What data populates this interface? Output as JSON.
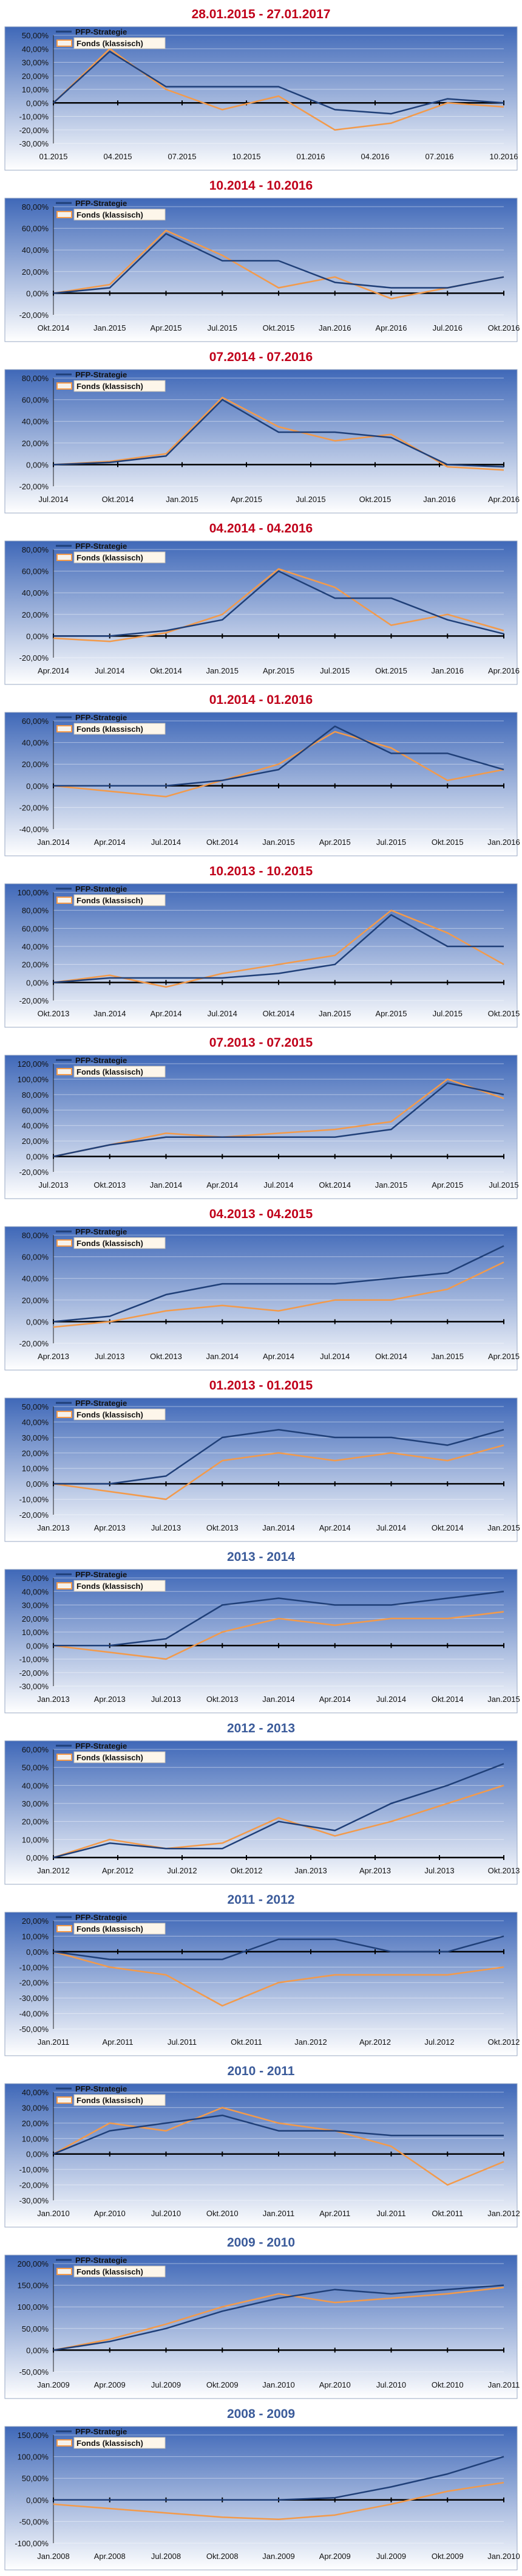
{
  "colors": {
    "panel_top": "#3f68b8",
    "panel_bottom": "#ffffff",
    "panel_border": "#9aa9c4",
    "title_red": "#c0001a",
    "title_blue": "#3b5b9a",
    "pfp": "#1f3f78",
    "fonds": "#f39a4a"
  },
  "legend": {
    "pfp": "PFP-Strategie",
    "fonds": "Fonds (klassisch)"
  },
  "chart_data": [
    {
      "type": "line",
      "title": "28.01.2015 - 27.01.2017",
      "title_color": "red",
      "y_ticks": [
        -30,
        -20,
        -10,
        0,
        10,
        20,
        30,
        40,
        50
      ],
      "ylim": [
        -30,
        50
      ],
      "x_ticks": [
        "01.2015",
        "04.2015",
        "07.2015",
        "10.2015",
        "01.2016",
        "04.2016",
        "07.2016",
        "10.2016"
      ],
      "series": [
        {
          "name": "PFP-Strategie",
          "x": [
            0,
            1,
            2,
            3,
            4,
            5,
            6,
            7,
            8
          ],
          "values": [
            0,
            38,
            12,
            12,
            12,
            -5,
            -8,
            3,
            0
          ]
        },
        {
          "name": "Fonds (klassisch)",
          "x": [
            0,
            1,
            2,
            3,
            4,
            5,
            6,
            7,
            8
          ],
          "values": [
            0,
            40,
            10,
            -5,
            5,
            -20,
            -15,
            0,
            -3
          ]
        }
      ]
    },
    {
      "type": "line",
      "title": "10.2014 - 10.2016",
      "title_color": "red",
      "y_ticks": [
        -20,
        0,
        20,
        40,
        60,
        80
      ],
      "ylim": [
        -20,
        80
      ],
      "x_ticks": [
        "Okt.2014",
        "Jan.2015",
        "Apr.2015",
        "Jul.2015",
        "Okt.2015",
        "Jan.2016",
        "Apr.2016",
        "Jul.2016",
        "Okt.2016"
      ],
      "series": [
        {
          "name": "PFP-Strategie",
          "x": [
            0,
            1,
            2,
            3,
            4,
            5,
            6,
            7,
            8
          ],
          "values": [
            0,
            5,
            55,
            30,
            30,
            10,
            5,
            5,
            15
          ]
        },
        {
          "name": "Fonds (klassisch)",
          "x": [
            0,
            1,
            2,
            3,
            4,
            5,
            6,
            7,
            8
          ],
          "values": [
            0,
            8,
            58,
            35,
            5,
            15,
            -5,
            5,
            15
          ]
        }
      ]
    },
    {
      "type": "line",
      "title": "07.2014 - 07.2016",
      "title_color": "red",
      "y_ticks": [
        -20,
        0,
        20,
        40,
        60,
        80
      ],
      "ylim": [
        -20,
        80
      ],
      "x_ticks": [
        "Jul.2014",
        "Okt.2014",
        "Jan.2015",
        "Apr.2015",
        "Jul.2015",
        "Okt.2015",
        "Jan.2016",
        "Apr.2016"
      ],
      "series": [
        {
          "name": "PFP-Strategie",
          "x": [
            0,
            1,
            2,
            3,
            4,
            5,
            6,
            7,
            8
          ],
          "values": [
            0,
            2,
            8,
            60,
            30,
            30,
            25,
            0,
            -2
          ]
        },
        {
          "name": "Fonds (klassisch)",
          "x": [
            0,
            1,
            2,
            3,
            4,
            5,
            6,
            7,
            8
          ],
          "values": [
            0,
            3,
            10,
            62,
            35,
            22,
            28,
            -2,
            -5
          ]
        }
      ]
    },
    {
      "type": "line",
      "title": "04.2014 - 04.2016",
      "title_color": "red",
      "y_ticks": [
        -20,
        0,
        20,
        40,
        60,
        80
      ],
      "ylim": [
        -20,
        80
      ],
      "x_ticks": [
        "Apr.2014",
        "Jul.2014",
        "Okt.2014",
        "Jan.2015",
        "Apr.2015",
        "Jul.2015",
        "Okt.2015",
        "Jan.2016",
        "Apr.2016"
      ],
      "series": [
        {
          "name": "PFP-Strategie",
          "x": [
            0,
            1,
            2,
            3,
            4,
            5,
            6,
            7,
            8
          ],
          "values": [
            0,
            0,
            5,
            15,
            60,
            35,
            35,
            15,
            2
          ]
        },
        {
          "name": "Fonds (klassisch)",
          "x": [
            0,
            1,
            2,
            3,
            4,
            5,
            6,
            7,
            8
          ],
          "values": [
            -2,
            -5,
            3,
            20,
            62,
            45,
            10,
            20,
            5
          ]
        }
      ]
    },
    {
      "type": "line",
      "title": "01.2014 - 01.2016",
      "title_color": "red",
      "y_ticks": [
        -40,
        -20,
        0,
        20,
        40,
        60
      ],
      "ylim": [
        -40,
        60
      ],
      "x_ticks": [
        "Jan.2014",
        "Apr.2014",
        "Jul.2014",
        "Okt.2014",
        "Jan.2015",
        "Apr.2015",
        "Jul.2015",
        "Okt.2015",
        "Jan.2016"
      ],
      "series": [
        {
          "name": "PFP-Strategie",
          "x": [
            0,
            1,
            2,
            3,
            4,
            5,
            6,
            7,
            8
          ],
          "values": [
            0,
            0,
            0,
            5,
            15,
            55,
            30,
            30,
            15
          ]
        },
        {
          "name": "Fonds (klassisch)",
          "x": [
            0,
            1,
            2,
            3,
            4,
            5,
            6,
            7,
            8
          ],
          "values": [
            0,
            -5,
            -10,
            5,
            20,
            50,
            35,
            5,
            15
          ]
        }
      ]
    },
    {
      "type": "line",
      "title": "10.2013 - 10.2015",
      "title_color": "red",
      "y_ticks": [
        -20,
        0,
        20,
        40,
        60,
        80,
        100
      ],
      "ylim": [
        -20,
        100
      ],
      "x_ticks": [
        "Okt.2013",
        "Jan.2014",
        "Apr.2014",
        "Jul.2014",
        "Okt.2014",
        "Jan.2015",
        "Apr.2015",
        "Jul.2015",
        "Okt.2015"
      ],
      "series": [
        {
          "name": "PFP-Strategie",
          "x": [
            0,
            1,
            2,
            3,
            4,
            5,
            6,
            7,
            8
          ],
          "values": [
            0,
            5,
            5,
            5,
            10,
            20,
            75,
            40,
            40
          ]
        },
        {
          "name": "Fonds (klassisch)",
          "x": [
            0,
            1,
            2,
            3,
            4,
            5,
            6,
            7,
            8
          ],
          "values": [
            0,
            8,
            -5,
            10,
            20,
            30,
            80,
            55,
            20
          ]
        }
      ]
    },
    {
      "type": "line",
      "title": "07.2013 - 07.2015",
      "title_color": "red",
      "y_ticks": [
        -20,
        0,
        20,
        40,
        60,
        80,
        100,
        120
      ],
      "ylim": [
        -20,
        120
      ],
      "x_ticks": [
        "Jul.2013",
        "Okt.2013",
        "Jan.2014",
        "Apr.2014",
        "Jul.2014",
        "Okt.2014",
        "Jan.2015",
        "Apr.2015",
        "Jul.2015"
      ],
      "series": [
        {
          "name": "PFP-Strategie",
          "x": [
            0,
            1,
            2,
            3,
            4,
            5,
            6,
            7,
            8
          ],
          "values": [
            0,
            15,
            25,
            25,
            25,
            25,
            35,
            95,
            80
          ]
        },
        {
          "name": "Fonds (klassisch)",
          "x": [
            0,
            1,
            2,
            3,
            4,
            5,
            6,
            7,
            8
          ],
          "values": [
            0,
            15,
            30,
            25,
            30,
            35,
            45,
            100,
            75
          ]
        }
      ]
    },
    {
      "type": "line",
      "title": "04.2013 - 04.2015",
      "title_color": "red",
      "y_ticks": [
        -20,
        0,
        20,
        40,
        60,
        80
      ],
      "ylim": [
        -20,
        80
      ],
      "x_ticks": [
        "Apr.2013",
        "Jul.2013",
        "Okt.2013",
        "Jan.2014",
        "Apr.2014",
        "Jul.2014",
        "Okt.2014",
        "Jan.2015",
        "Apr.2015"
      ],
      "series": [
        {
          "name": "PFP-Strategie",
          "x": [
            0,
            1,
            2,
            3,
            4,
            5,
            6,
            7,
            8
          ],
          "values": [
            0,
            5,
            25,
            35,
            35,
            35,
            40,
            45,
            70
          ]
        },
        {
          "name": "Fonds (klassisch)",
          "x": [
            0,
            1,
            2,
            3,
            4,
            5,
            6,
            7,
            8
          ],
          "values": [
            -5,
            0,
            10,
            15,
            10,
            20,
            20,
            30,
            55
          ]
        }
      ]
    },
    {
      "type": "line",
      "title": "01.2013 - 01.2015",
      "title_color": "red",
      "y_ticks": [
        -20,
        -10,
        0,
        10,
        20,
        30,
        40,
        50
      ],
      "ylim": [
        -20,
        50
      ],
      "x_ticks": [
        "Jan.2013",
        "Apr.2013",
        "Jul.2013",
        "Okt.2013",
        "Jan.2014",
        "Apr.2014",
        "Jul.2014",
        "Okt.2014",
        "Jan.2015"
      ],
      "series": [
        {
          "name": "PFP-Strategie",
          "x": [
            0,
            1,
            2,
            3,
            4,
            5,
            6,
            7,
            8
          ],
          "values": [
            0,
            0,
            5,
            30,
            35,
            30,
            30,
            25,
            35
          ]
        },
        {
          "name": "Fonds (klassisch)",
          "x": [
            0,
            1,
            2,
            3,
            4,
            5,
            6,
            7,
            8
          ],
          "values": [
            0,
            -5,
            -10,
            15,
            20,
            15,
            20,
            15,
            25
          ]
        }
      ]
    },
    {
      "type": "line",
      "title": "2013 - 2014",
      "title_color": "blue",
      "y_ticks": [
        -30,
        -20,
        -10,
        0,
        10,
        20,
        30,
        40,
        50
      ],
      "ylim": [
        -30,
        50
      ],
      "x_ticks": [
        "Jan.2013",
        "Apr.2013",
        "Jul.2013",
        "Okt.2013",
        "Jan.2014",
        "Apr.2014",
        "Jul.2014",
        "Okt.2014",
        "Jan.2015"
      ],
      "series": [
        {
          "name": "PFP-Strategie",
          "x": [
            0,
            1,
            2,
            3,
            4,
            5,
            6,
            7,
            8
          ],
          "values": [
            0,
            0,
            5,
            30,
            35,
            30,
            30,
            35,
            40
          ]
        },
        {
          "name": "Fonds (klassisch)",
          "x": [
            0,
            1,
            2,
            3,
            4,
            5,
            6,
            7,
            8
          ],
          "values": [
            0,
            -5,
            -10,
            10,
            20,
            15,
            20,
            20,
            25
          ]
        }
      ]
    },
    {
      "type": "line",
      "title": "2012 - 2013",
      "title_color": "blue",
      "y_ticks": [
        0,
        10,
        20,
        30,
        40,
        50,
        60
      ],
      "ylim": [
        0,
        60
      ],
      "x_ticks": [
        "Jan.2012",
        "Apr.2012",
        "Jul.2012",
        "Okt.2012",
        "Jan.2013",
        "Apr.2013",
        "Jul.2013",
        "Okt.2013"
      ],
      "series": [
        {
          "name": "PFP-Strategie",
          "x": [
            0,
            1,
            2,
            3,
            4,
            5,
            6,
            7,
            8
          ],
          "values": [
            0,
            8,
            5,
            5,
            20,
            15,
            30,
            40,
            52
          ]
        },
        {
          "name": "Fonds (klassisch)",
          "x": [
            0,
            1,
            2,
            3,
            4,
            5,
            6,
            7,
            8
          ],
          "values": [
            0,
            10,
            5,
            8,
            22,
            12,
            20,
            30,
            40
          ]
        }
      ]
    },
    {
      "type": "line",
      "title": "2011 - 2012",
      "title_color": "blue",
      "y_ticks": [
        -50,
        -40,
        -30,
        -20,
        -10,
        0,
        10,
        20
      ],
      "ylim": [
        -50,
        20
      ],
      "x_ticks": [
        "Jan.2011",
        "Apr.2011",
        "Jul.2011",
        "Okt.2011",
        "Jan.2012",
        "Apr.2012",
        "Jul.2012",
        "Okt.2012"
      ],
      "series": [
        {
          "name": "PFP-Strategie",
          "x": [
            0,
            1,
            2,
            3,
            4,
            5,
            6,
            7,
            8
          ],
          "values": [
            0,
            -5,
            -5,
            -5,
            8,
            8,
            0,
            0,
            10
          ]
        },
        {
          "name": "Fonds (klassisch)",
          "x": [
            0,
            1,
            2,
            3,
            4,
            5,
            6,
            7,
            8
          ],
          "values": [
            0,
            -10,
            -15,
            -35,
            -20,
            -15,
            -15,
            -15,
            -10
          ]
        }
      ]
    },
    {
      "type": "line",
      "title": "2010 - 2011",
      "title_color": "blue",
      "y_ticks": [
        -30,
        -20,
        -10,
        0,
        10,
        20,
        30,
        40
      ],
      "ylim": [
        -30,
        40
      ],
      "x_ticks": [
        "Jan.2010",
        "Apr.2010",
        "Jul.2010",
        "Okt.2010",
        "Jan.2011",
        "Apr.2011",
        "Jul.2011",
        "Okt.2011",
        "Jan.2012"
      ],
      "series": [
        {
          "name": "PFP-Strategie",
          "x": [
            0,
            1,
            2,
            3,
            4,
            5,
            6,
            7,
            8
          ],
          "values": [
            0,
            15,
            20,
            25,
            15,
            15,
            12,
            12,
            12
          ]
        },
        {
          "name": "Fonds (klassisch)",
          "x": [
            0,
            1,
            2,
            3,
            4,
            5,
            6,
            7,
            8
          ],
          "values": [
            0,
            20,
            15,
            30,
            20,
            15,
            5,
            -20,
            -5
          ]
        }
      ]
    },
    {
      "type": "line",
      "title": "2009 - 2010",
      "title_color": "blue",
      "y_ticks": [
        -50,
        0,
        50,
        100,
        150,
        200
      ],
      "ylim": [
        -50,
        200
      ],
      "x_ticks": [
        "Jan.2009",
        "Apr.2009",
        "Jul.2009",
        "Okt.2009",
        "Jan.2010",
        "Apr.2010",
        "Jul.2010",
        "Okt.2010",
        "Jan.2011"
      ],
      "series": [
        {
          "name": "PFP-Strategie",
          "x": [
            0,
            1,
            2,
            3,
            4,
            5,
            6,
            7,
            8
          ],
          "values": [
            0,
            20,
            50,
            90,
            120,
            140,
            130,
            140,
            150
          ]
        },
        {
          "name": "Fonds (klassisch)",
          "x": [
            0,
            1,
            2,
            3,
            4,
            5,
            6,
            7,
            8
          ],
          "values": [
            0,
            25,
            60,
            100,
            130,
            110,
            120,
            130,
            145
          ]
        }
      ]
    },
    {
      "type": "line",
      "title": "2008 - 2009",
      "title_color": "blue",
      "y_ticks": [
        -100,
        -50,
        0,
        50,
        100,
        150
      ],
      "ylim": [
        -100,
        150
      ],
      "x_ticks": [
        "Jan.2008",
        "Apr.2008",
        "Jul.2008",
        "Okt.2008",
        "Jan.2009",
        "Apr.2009",
        "Jul.2009",
        "Okt.2009",
        "Jan.2010"
      ],
      "series": [
        {
          "name": "PFP-Strategie",
          "x": [
            0,
            1,
            2,
            3,
            4,
            5,
            6,
            7,
            8
          ],
          "values": [
            0,
            0,
            0,
            0,
            0,
            5,
            30,
            60,
            100
          ]
        },
        {
          "name": "Fonds (klassisch)",
          "x": [
            0,
            1,
            2,
            3,
            4,
            5,
            6,
            7,
            8
          ],
          "values": [
            -10,
            -20,
            -30,
            -40,
            -45,
            -35,
            -10,
            20,
            40
          ]
        }
      ]
    }
  ]
}
